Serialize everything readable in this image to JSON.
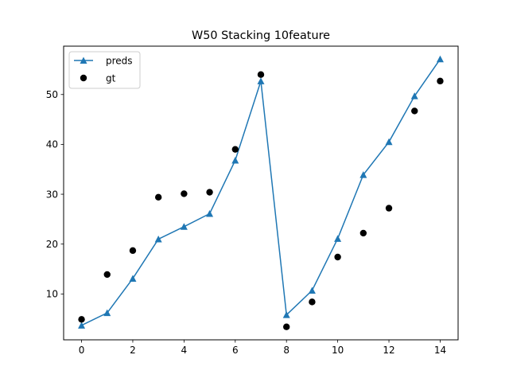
{
  "chart_data": {
    "type": "line",
    "title": "W50 Stacking 10feature",
    "xlabel": "",
    "ylabel": "",
    "xlim": [
      -0.7,
      14.7
    ],
    "ylim": [
      0.8,
      59.7
    ],
    "xticks": [
      0,
      2,
      4,
      6,
      8,
      10,
      12,
      14
    ],
    "yticks": [
      10,
      20,
      30,
      40,
      50
    ],
    "grid": false,
    "legend_position": "upper-left",
    "x": [
      0,
      1,
      2,
      3,
      4,
      5,
      6,
      7,
      8,
      9,
      10,
      11,
      12,
      13,
      14
    ],
    "series": [
      {
        "name": "preds",
        "style": "line-triangle",
        "color": "#1f77b4",
        "values": [
          3.7,
          6.2,
          13.1,
          21.0,
          23.5,
          26.1,
          36.8,
          52.7,
          5.8,
          10.7,
          21.1,
          33.9,
          40.5,
          49.7,
          57.1
        ]
      },
      {
        "name": "gt",
        "style": "scatter-circle",
        "color": "#000000",
        "values": [
          4.9,
          13.9,
          18.7,
          29.4,
          30.1,
          30.4,
          39.0,
          54.0,
          3.4,
          8.4,
          17.4,
          22.2,
          27.2,
          46.7,
          52.7
        ]
      }
    ]
  }
}
